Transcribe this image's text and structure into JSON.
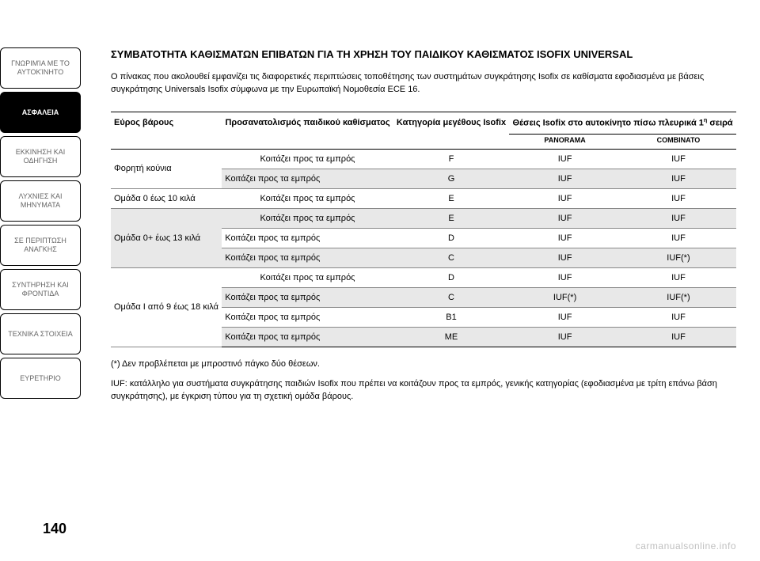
{
  "sidebar": {
    "tabs": [
      {
        "label": "ΓΝΩΡΙΜΊΑ ΜΕ ΤΟ ΑΥΤΟΚΊΝΗΤΟ",
        "active": false
      },
      {
        "label": "ΑΣΦΑΛΕΙΑ",
        "active": true
      },
      {
        "label": "ΕΚΚΙΝΗΣΗ ΚΑΙ ΟΔΗΓΗΣΗ",
        "active": false
      },
      {
        "label": "ΛΥΧΝΙΕΣ ΚΑΙ ΜΗΝΥΜΑΤΑ",
        "active": false
      },
      {
        "label": "ΣΕ ΠΕΡΙΠΤΩΣΗ ΑΝΑΓΚΗΣ",
        "active": false
      },
      {
        "label": "ΣΥΝΤΗΡΗΣΗ ΚΑΙ ΦΡΟΝΤΙΔΑ",
        "active": false
      },
      {
        "label": "ΤΕΧΝΙΚΑ ΣΤΟΙΧΕΙΑ",
        "active": false
      },
      {
        "label": "ΕΥΡΕΤΗΡΙΟ",
        "active": false
      }
    ]
  },
  "title": "ΣΥΜΒΑΤΟΤΗΤΑ ΚΑΘΙΣΜΑΤΩΝ ΕΠΙΒΑΤΩΝ ΓΙΑ ΤΗ ΧΡΗΣΗ ΤΟΥ ΠΑΙΔΙΚΟΥ ΚΑΘΙΣΜΑΤΟΣ ISOFIX UNIVERSAL",
  "intro": "Ο πίνακας που ακολουθεί εμφανίζει τις διαφορετικές περιπτώσεις τοποθέτησης των συστημάτων συγκράτησης Isofix σε καθίσματα εφοδιασμένα με βάσεις συγκράτησης Universals Isofix σύμφωνα με την Ευρωπαϊκή Νομοθεσία ECE 16.",
  "table": {
    "headers": {
      "col1": "Εύρος βάρους",
      "col2": "Προσανατολισμός παιδικού καθίσματος",
      "col3": "Κατηγορία μεγέθους Isofix",
      "col4": "Θέσεις Isofix στο αυτοκίνητο πίσω πλευρικά 1",
      "col4_sup": "η",
      "col4_suffix": " σειρά"
    },
    "subheaders": {
      "panorama": "PANORAMA",
      "combinato": "COMBINATO"
    },
    "groups": [
      {
        "weight": "Φορητή κούνια",
        "rows": [
          {
            "orientation": "Κοιτάζει προς τα εμπρός",
            "size": "F",
            "p": "IUF",
            "c": "IUF"
          },
          {
            "orientation": "Κοιτάζει προς τα εμπρός",
            "size": "G",
            "p": "IUF",
            "c": "IUF"
          }
        ]
      },
      {
        "weight": "Ομάδα 0 έως 10 κιλά",
        "rows": [
          {
            "orientation": "Κοιτάζει προς τα εμπρός",
            "size": "E",
            "p": "IUF",
            "c": "IUF"
          }
        ]
      },
      {
        "weight": "Ομάδα 0+ έως 13 κιλά",
        "rows": [
          {
            "orientation": "Κοιτάζει προς τα εμπρός",
            "size": "E",
            "p": "IUF",
            "c": "IUF"
          },
          {
            "orientation": "Κοιτάζει προς τα εμπρός",
            "size": "D",
            "p": "IUF",
            "c": "IUF"
          },
          {
            "orientation": "Κοιτάζει προς τα εμπρός",
            "size": "C",
            "p": "IUF",
            "c": "IUF(*)"
          }
        ]
      },
      {
        "weight": "Ομάδα I από 9 έως 18 κιλά",
        "rows": [
          {
            "orientation": "Κοιτάζει προς τα εμπρός",
            "size": "D",
            "p": "IUF",
            "c": "IUF"
          },
          {
            "orientation": "Κοιτάζει προς τα εμπρός",
            "size": "C",
            "p": "IUF(*)",
            "c": "IUF(*)"
          },
          {
            "orientation": "Κοιτάζει προς τα εμπρός",
            "size": "B1",
            "p": "IUF",
            "c": "IUF"
          },
          {
            "orientation": "Κοιτάζει προς τα εμπρός",
            "size": "ME",
            "p": "IUF",
            "c": "IUF"
          }
        ]
      }
    ]
  },
  "footnote": "(*) Δεν προβλέπεται με μπροστινό πάγκο δύο θέσεων.",
  "iuf_prefix": "IUF:",
  "iuf_desc": " κατάλληλο για συστήματα συγκράτησης παιδιών Isofix που πρέπει να κοιτάζουν προς τα εμπρός, γενικής κατηγορίας (εφοδιασμένα με τρίτη επάνω βάση συγκράτησης), με έγκριση τύπου για τη σχετική ομάδα βάρους.",
  "page_num": "140",
  "watermark": "carmanualsonline.info"
}
